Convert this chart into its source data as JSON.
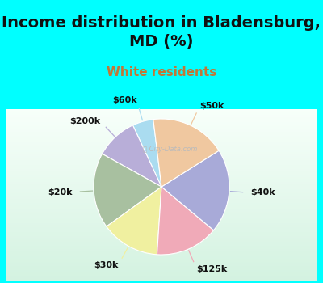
{
  "title": "Income distribution in Bladensburg,\nMD (%)",
  "subtitle": "White residents",
  "labels": [
    "$60k",
    "$200k",
    "$20k",
    "$30k",
    "$125k",
    "$40k",
    "$50k"
  ],
  "sizes": [
    5,
    10,
    18,
    14,
    15,
    20,
    18
  ],
  "colors": [
    "#aadcf0",
    "#b8aed8",
    "#a8c0a0",
    "#f0f0a0",
    "#f0aab8",
    "#a8aad8",
    "#f0c8a0"
  ],
  "startangle": 97,
  "bg_color": "#00ffff",
  "title_color": "#111111",
  "subtitle_color": "#c07838",
  "title_fontsize": 14,
  "subtitle_fontsize": 11,
  "label_fontsize": 8,
  "watermark": "ⓘ City-Data.com"
}
